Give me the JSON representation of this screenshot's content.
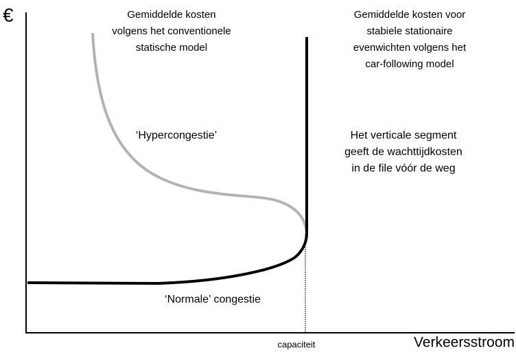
{
  "axes": {
    "y_label": "€",
    "x_label": "Verkeersstroom",
    "capacity_label": "capaciteit"
  },
  "annotations": {
    "static_model": [
      "Gemiddelde kosten",
      "volgens het conventionele",
      "statische model"
    ],
    "car_following": [
      "Gemiddelde kosten voor",
      "stabiele stationaire",
      "evenwichten volgens het",
      "car-following model"
    ],
    "vertical_segment": [
      "Het verticale segment",
      "geeft de  wachttijdkosten",
      "in de file vóór de weg"
    ],
    "hypercongestion": "‘Hypercongestie’",
    "normal_congestion": "‘Normale’ congestie"
  }
}
